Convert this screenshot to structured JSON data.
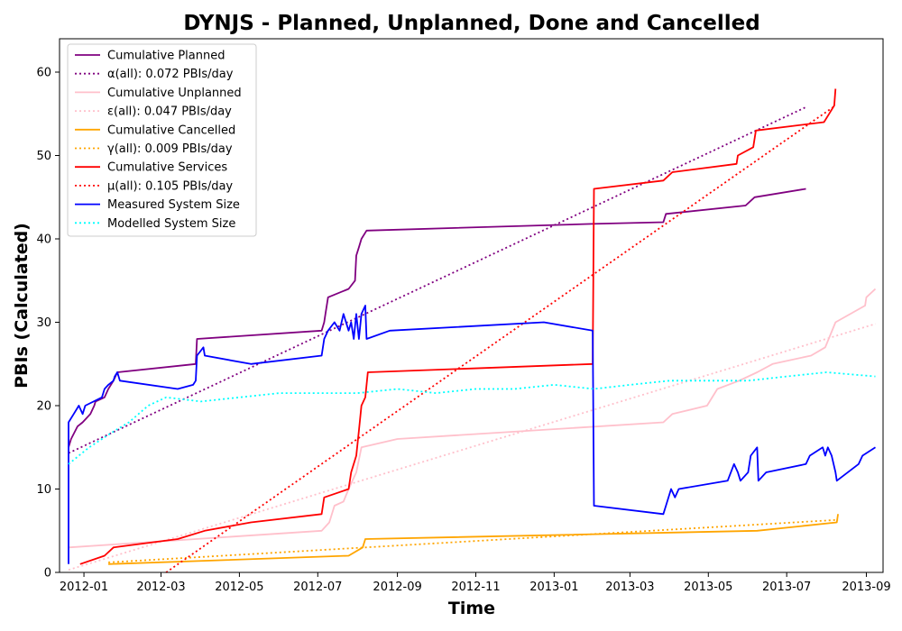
{
  "chart_data": {
    "type": "line",
    "title": "DYNJS - Planned, Unplanned, Done  and Cancelled",
    "xlabel": "Time",
    "ylabel": "PBIs (Calculated)",
    "xlim": [
      "2011-12-13",
      "2013-09-14"
    ],
    "ylim": [
      0,
      64
    ],
    "x_ticks": [
      "2012-01",
      "2012-03",
      "2012-05",
      "2012-07",
      "2012-09",
      "2012-11",
      "2013-01",
      "2013-03",
      "2013-05",
      "2013-07",
      "2013-09"
    ],
    "y_ticks": [
      0,
      10,
      20,
      30,
      40,
      50,
      60
    ],
    "grid": false,
    "legend_position": "top-left",
    "series": [
      {
        "name": "Cumulative Planned",
        "color": "#800080",
        "style": "solid",
        "points": [
          [
            "2011-12-20",
            15
          ],
          [
            "2011-12-22",
            16
          ],
          [
            "2011-12-27",
            17.5
          ],
          [
            "2011-12-31",
            18
          ],
          [
            "2012-01-06",
            19
          ],
          [
            "2012-01-09",
            20
          ],
          [
            "2012-01-10",
            20.5
          ],
          [
            "2012-01-17",
            21
          ],
          [
            "2012-01-20",
            22
          ],
          [
            "2012-01-24",
            23
          ],
          [
            "2012-01-27",
            24
          ],
          [
            "2012-03-28",
            25
          ],
          [
            "2012-03-29",
            28
          ],
          [
            "2012-07-04",
            29
          ],
          [
            "2012-07-06",
            30
          ],
          [
            "2012-07-07",
            31
          ],
          [
            "2012-07-09",
            33
          ],
          [
            "2012-07-25",
            34
          ],
          [
            "2012-07-30",
            35
          ],
          [
            "2012-07-31",
            38
          ],
          [
            "2012-08-02",
            39
          ],
          [
            "2012-08-04",
            40
          ],
          [
            "2012-08-08",
            41
          ],
          [
            "2013-01-30",
            41.8
          ],
          [
            "2013-03-27",
            42
          ],
          [
            "2013-03-29",
            43
          ],
          [
            "2013-05-30",
            44
          ],
          [
            "2013-06-06",
            45
          ],
          [
            "2013-07-16",
            46
          ]
        ]
      },
      {
        "name": "α(all): 0.072 PBIs/day",
        "color": "#800080",
        "style": "dotted",
        "points": [
          [
            "2011-12-20",
            14.3
          ],
          [
            "2013-07-16",
            55.8
          ]
        ]
      },
      {
        "name": "Cumulative Unplanned",
        "color": "#ffc0cb",
        "style": "solid",
        "points": [
          [
            "2011-12-20",
            3
          ],
          [
            "2012-07-04",
            5
          ],
          [
            "2012-07-10",
            6
          ],
          [
            "2012-07-14",
            8
          ],
          [
            "2012-07-21",
            8.5
          ],
          [
            "2012-07-25",
            10
          ],
          [
            "2012-07-31",
            12
          ],
          [
            "2012-08-04",
            15
          ],
          [
            "2012-09-01",
            16
          ],
          [
            "2013-03-27",
            18
          ],
          [
            "2013-04-03",
            19
          ],
          [
            "2013-04-30",
            20
          ],
          [
            "2013-05-08",
            22
          ],
          [
            "2013-05-25",
            23
          ],
          [
            "2013-06-08",
            24
          ],
          [
            "2013-06-20",
            25
          ],
          [
            "2013-07-20",
            26
          ],
          [
            "2013-07-31",
            27
          ],
          [
            "2013-08-08",
            30
          ],
          [
            "2013-08-31",
            32
          ],
          [
            "2013-09-01",
            33
          ],
          [
            "2013-09-08",
            34
          ]
        ]
      },
      {
        "name": "ε(all): 0.047 PBIs/day",
        "color": "#ffc0cb",
        "style": "dotted",
        "points": [
          [
            "2011-12-20",
            0.3
          ],
          [
            "2013-09-08",
            29.8
          ]
        ]
      },
      {
        "name": "Cumulative Cancelled",
        "color": "#ffa500",
        "style": "solid",
        "points": [
          [
            "2012-01-20",
            1
          ],
          [
            "2012-07-25",
            2
          ],
          [
            "2012-08-05",
            3
          ],
          [
            "2012-08-07",
            4
          ],
          [
            "2013-06-08",
            5
          ],
          [
            "2013-08-09",
            6
          ],
          [
            "2013-08-10",
            7
          ]
        ]
      },
      {
        "name": "γ(all): 0.009 PBIs/day",
        "color": "#ffa500",
        "style": "dotted",
        "points": [
          [
            "2012-01-20",
            1.2
          ],
          [
            "2013-08-10",
            6.3
          ]
        ]
      },
      {
        "name": "Cumulative Services",
        "color": "#ff0000",
        "style": "solid",
        "points": [
          [
            "2011-12-29",
            1
          ],
          [
            "2012-01-17",
            2
          ],
          [
            "2012-01-24",
            3
          ],
          [
            "2012-03-14",
            4
          ],
          [
            "2012-04-04",
            5
          ],
          [
            "2012-05-10",
            6
          ],
          [
            "2012-07-04",
            7
          ],
          [
            "2012-07-06",
            9
          ],
          [
            "2012-07-25",
            10
          ],
          [
            "2012-07-27",
            12
          ],
          [
            "2012-07-31",
            14
          ],
          [
            "2012-08-02",
            17
          ],
          [
            "2012-08-04",
            20
          ],
          [
            "2012-08-07",
            21
          ],
          [
            "2012-08-09",
            24
          ],
          [
            "2013-01-31",
            25
          ],
          [
            "2013-02-01",
            46
          ],
          [
            "2013-03-27",
            47
          ],
          [
            "2013-04-03",
            48
          ],
          [
            "2013-05-23",
            49
          ],
          [
            "2013-05-24",
            50
          ],
          [
            "2013-06-05",
            51
          ],
          [
            "2013-06-07",
            53
          ],
          [
            "2013-07-30",
            54
          ],
          [
            "2013-08-03",
            55
          ],
          [
            "2013-08-07",
            56
          ],
          [
            "2013-08-08",
            58
          ]
        ]
      },
      {
        "name": "μ(all): 0.105 PBIs/day",
        "color": "#ff0000",
        "style": "dotted",
        "points": [
          [
            "2012-03-05",
            0
          ],
          [
            "2013-08-08",
            56
          ]
        ]
      },
      {
        "name": "Measured System Size",
        "color": "#0000ff",
        "style": "solid",
        "points": [
          [
            "2011-12-20",
            1
          ],
          [
            "2011-12-20",
            18
          ],
          [
            "2011-12-24",
            19
          ],
          [
            "2011-12-28",
            20
          ],
          [
            "2011-12-31",
            19
          ],
          [
            "2012-01-02",
            20
          ],
          [
            "2012-01-15",
            21
          ],
          [
            "2012-01-17",
            22
          ],
          [
            "2012-01-20",
            22.5
          ],
          [
            "2012-01-24",
            23
          ],
          [
            "2012-01-25",
            23.5
          ],
          [
            "2012-01-27",
            24
          ],
          [
            "2012-01-29",
            23
          ],
          [
            "2012-03-14",
            22
          ],
          [
            "2012-03-26",
            22.5
          ],
          [
            "2012-03-28",
            23
          ],
          [
            "2012-03-29",
            26
          ],
          [
            "2012-04-03",
            27
          ],
          [
            "2012-04-04",
            26
          ],
          [
            "2012-05-10",
            25
          ],
          [
            "2012-07-04",
            26
          ],
          [
            "2012-07-05",
            27
          ],
          [
            "2012-07-06",
            28
          ],
          [
            "2012-07-09",
            29
          ],
          [
            "2012-07-14",
            30
          ],
          [
            "2012-07-18",
            29
          ],
          [
            "2012-07-21",
            31
          ],
          [
            "2012-07-25",
            29
          ],
          [
            "2012-07-27",
            30
          ],
          [
            "2012-07-29",
            28
          ],
          [
            "2012-07-31",
            31
          ],
          [
            "2012-08-02",
            28
          ],
          [
            "2012-08-04",
            31
          ],
          [
            "2012-08-07",
            32
          ],
          [
            "2012-08-08",
            28
          ],
          [
            "2012-08-26",
            29
          ],
          [
            "2012-12-24",
            30
          ],
          [
            "2013-01-31",
            29
          ],
          [
            "2013-02-01",
            8
          ],
          [
            "2013-03-27",
            7
          ],
          [
            "2013-03-29",
            8
          ],
          [
            "2013-04-02",
            10
          ],
          [
            "2013-04-05",
            9
          ],
          [
            "2013-04-08",
            10
          ],
          [
            "2013-05-16",
            11
          ],
          [
            "2013-05-21",
            13
          ],
          [
            "2013-05-24",
            12
          ],
          [
            "2013-05-26",
            11
          ],
          [
            "2013-06-01",
            12
          ],
          [
            "2013-06-03",
            14
          ],
          [
            "2013-06-08",
            15
          ],
          [
            "2013-06-09",
            11
          ],
          [
            "2013-06-15",
            12
          ],
          [
            "2013-07-16",
            13
          ],
          [
            "2013-07-19",
            14
          ],
          [
            "2013-07-29",
            15
          ],
          [
            "2013-07-31",
            14
          ],
          [
            "2013-08-02",
            15
          ],
          [
            "2013-08-05",
            14
          ],
          [
            "2013-08-08",
            12
          ],
          [
            "2013-08-09",
            11
          ],
          [
            "2013-08-26",
            13
          ],
          [
            "2013-08-29",
            14
          ],
          [
            "2013-09-08",
            15
          ]
        ]
      },
      {
        "name": "Modelled System Size",
        "color": "#00ffff",
        "style": "dotted",
        "points": [
          [
            "2011-12-20",
            13
          ],
          [
            "2012-01-05",
            15
          ],
          [
            "2012-01-25",
            17
          ],
          [
            "2012-02-05",
            18
          ],
          [
            "2012-02-20",
            20
          ],
          [
            "2012-03-05",
            21
          ],
          [
            "2012-04-01",
            20.5
          ],
          [
            "2012-05-01",
            21
          ],
          [
            "2012-06-01",
            21.5
          ],
          [
            "2012-07-01",
            21.5
          ],
          [
            "2012-08-01",
            21.5
          ],
          [
            "2012-09-01",
            22
          ],
          [
            "2012-10-01",
            21.5
          ],
          [
            "2012-11-01",
            22
          ],
          [
            "2012-12-01",
            22
          ],
          [
            "2013-01-01",
            22.5
          ],
          [
            "2013-02-01",
            22
          ],
          [
            "2013-03-01",
            22.5
          ],
          [
            "2013-04-01",
            23
          ],
          [
            "2013-05-01",
            23
          ],
          [
            "2013-06-01",
            23
          ],
          [
            "2013-07-01",
            23.5
          ],
          [
            "2013-08-01",
            24
          ],
          [
            "2013-09-08",
            23.5
          ]
        ]
      }
    ]
  }
}
